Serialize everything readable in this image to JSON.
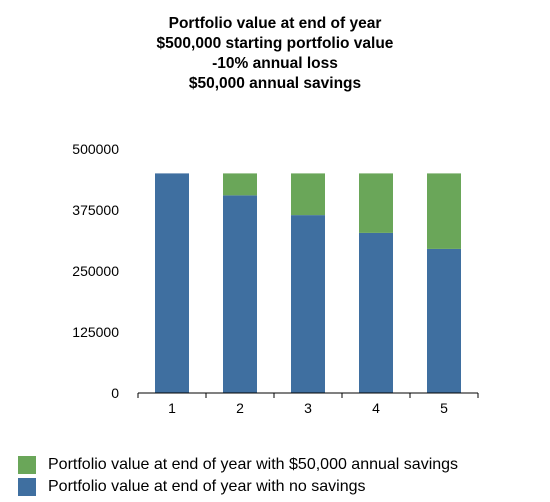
{
  "colors": {
    "no_savings": "#3f6fa0",
    "with_savings": "#6aa659",
    "axis": "#000000"
  },
  "chart_data": {
    "type": "bar",
    "stacked": true,
    "title_lines": [
      "Portfolio value at end of year",
      "$500,000 starting portfolio value",
      "-10% annual loss",
      "$50,000 annual savings"
    ],
    "xlabel": "",
    "ylabel": "",
    "categories": [
      "1",
      "2",
      "3",
      "4",
      "5"
    ],
    "y_ticks": [
      "500000",
      "375000",
      "250000",
      "125000",
      "0"
    ],
    "ylim": [
      0,
      500000
    ],
    "grid": false,
    "legend_position": "bottom",
    "series": [
      {
        "name": "Portfolio value at end of year with no savings",
        "color_key": "no_savings",
        "values": [
          450000,
          405000,
          364500,
          328050,
          295245
        ]
      },
      {
        "name": "Portfolio value at end of year with $50,000 annual savings",
        "color_key": "with_savings",
        "values": [
          0,
          45000,
          85500,
          121950,
          154755
        ]
      }
    ],
    "legend_order": [
      1,
      0
    ]
  }
}
